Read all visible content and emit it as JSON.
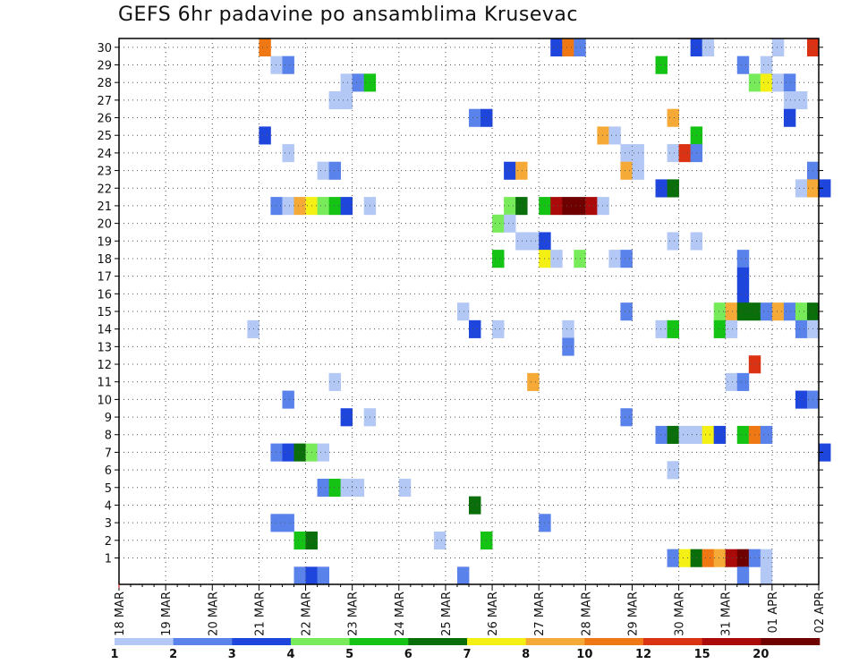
{
  "chart_data": {
    "type": "heatmap",
    "title": "GEFS 6hr padavine po ansamblima Krusevac",
    "xlabel": "",
    "ylabel": "",
    "x_tick_labels": [
      "18 MAR",
      "19 MAR",
      "20 MAR",
      "21 MAR",
      "22 MAR",
      "23 MAR",
      "24 MAR",
      "25 MAR",
      "26 MAR",
      "27 MAR",
      "28 MAR",
      "29 MAR",
      "30 MAR",
      "31 MAR",
      "01 APR",
      "02 APR"
    ],
    "y_range": [
      1,
      30
    ],
    "time_step_hours": 6,
    "grid": true,
    "legend_position": "bottom",
    "legend": {
      "levels": [
        "1",
        "2",
        "3",
        "4",
        "5",
        "6",
        "7",
        "8",
        "10",
        "12",
        "15",
        "20"
      ],
      "colors": [
        "#b4c8f5",
        "#5a82eb",
        "#1e46dc",
        "#78eb5a",
        "#14c314",
        "#0a6e0a",
        "#f5f014",
        "#f5aa37",
        "#f07814",
        "#dc3214",
        "#aa0a0a",
        "#6e0000"
      ]
    },
    "ensemble_cells": [
      {
        "m": 30,
        "s": [
          [
            12,
            8
          ],
          [
            37,
            2
          ],
          [
            38,
            8
          ],
          [
            39,
            1
          ],
          [
            49,
            2
          ],
          [
            50,
            0
          ],
          [
            56,
            0
          ],
          [
            59,
            9
          ]
        ]
      },
      {
        "m": 29,
        "s": [
          [
            13,
            0
          ],
          [
            14,
            1
          ],
          [
            46,
            4
          ],
          [
            53,
            1
          ],
          [
            55,
            0
          ]
        ]
      },
      {
        "m": 28,
        "s": [
          [
            19,
            0
          ],
          [
            20,
            1
          ],
          [
            21,
            4
          ],
          [
            54,
            3
          ],
          [
            55,
            6
          ],
          [
            56,
            0
          ],
          [
            57,
            1
          ]
        ]
      },
      {
        "m": 27,
        "s": [
          [
            18,
            0
          ],
          [
            19,
            0
          ],
          [
            57,
            0
          ],
          [
            58,
            0
          ]
        ]
      },
      {
        "m": 26,
        "s": [
          [
            30,
            1
          ],
          [
            31,
            2
          ],
          [
            47,
            7
          ],
          [
            57,
            2
          ]
        ]
      },
      {
        "m": 25,
        "s": [
          [
            12,
            2
          ],
          [
            41,
            7
          ],
          [
            42,
            0
          ],
          [
            49,
            4
          ]
        ]
      },
      {
        "m": 24,
        "s": [
          [
            14,
            0
          ],
          [
            43,
            0
          ],
          [
            44,
            0
          ],
          [
            47,
            0
          ],
          [
            48,
            9
          ],
          [
            49,
            1
          ]
        ]
      },
      {
        "m": 23,
        "s": [
          [
            17,
            0
          ],
          [
            18,
            1
          ],
          [
            33,
            2
          ],
          [
            34,
            7
          ],
          [
            43,
            7
          ],
          [
            44,
            0
          ],
          [
            59,
            1
          ]
        ]
      },
      {
        "m": 22,
        "s": [
          [
            46,
            2
          ],
          [
            47,
            5
          ],
          [
            58,
            0
          ],
          [
            59,
            7
          ],
          [
            60,
            2
          ]
        ]
      },
      {
        "m": 21,
        "s": [
          [
            13,
            1
          ],
          [
            14,
            0
          ],
          [
            15,
            7
          ],
          [
            16,
            6
          ],
          [
            17,
            3
          ],
          [
            18,
            4
          ],
          [
            19,
            2
          ],
          [
            21,
            0
          ],
          [
            33,
            3
          ],
          [
            34,
            5
          ],
          [
            36,
            4
          ],
          [
            37,
            10
          ],
          [
            38,
            11
          ],
          [
            39,
            11
          ],
          [
            40,
            10
          ],
          [
            41,
            0
          ]
        ]
      },
      {
        "m": 20,
        "s": [
          [
            32,
            3
          ],
          [
            33,
            0
          ]
        ]
      },
      {
        "m": 19,
        "s": [
          [
            34,
            0
          ],
          [
            35,
            0
          ],
          [
            36,
            2
          ],
          [
            47,
            0
          ],
          [
            49,
            0
          ]
        ]
      },
      {
        "m": 18,
        "s": [
          [
            32,
            4
          ],
          [
            36,
            6
          ],
          [
            37,
            0
          ],
          [
            39,
            3
          ],
          [
            42,
            0
          ],
          [
            43,
            1
          ],
          [
            53,
            1
          ]
        ]
      },
      {
        "m": 17,
        "s": [
          [
            53,
            2
          ]
        ]
      },
      {
        "m": 16,
        "s": [
          [
            53,
            2
          ]
        ]
      },
      {
        "m": 15,
        "s": [
          [
            29,
            0
          ],
          [
            43,
            1
          ],
          [
            51,
            3
          ],
          [
            52,
            7
          ],
          [
            53,
            5
          ],
          [
            54,
            5
          ],
          [
            55,
            1
          ],
          [
            56,
            7
          ],
          [
            57,
            1
          ],
          [
            58,
            3
          ],
          [
            59,
            5
          ]
        ]
      },
      {
        "m": 14,
        "s": [
          [
            11,
            0
          ],
          [
            30,
            2
          ],
          [
            32,
            0
          ],
          [
            38,
            0
          ],
          [
            46,
            0
          ],
          [
            47,
            4
          ],
          [
            51,
            4
          ],
          [
            52,
            0
          ],
          [
            58,
            1
          ],
          [
            59,
            0
          ]
        ]
      },
      {
        "m": 13,
        "s": [
          [
            38,
            1
          ]
        ]
      },
      {
        "m": 12,
        "s": [
          [
            54,
            9
          ]
        ]
      },
      {
        "m": 11,
        "s": [
          [
            18,
            0
          ],
          [
            35,
            7
          ],
          [
            52,
            0
          ],
          [
            53,
            1
          ]
        ]
      },
      {
        "m": 10,
        "s": [
          [
            14,
            1
          ],
          [
            58,
            2
          ],
          [
            59,
            1
          ]
        ]
      },
      {
        "m": 9,
        "s": [
          [
            19,
            2
          ],
          [
            21,
            0
          ],
          [
            43,
            1
          ]
        ]
      },
      {
        "m": 8,
        "s": [
          [
            46,
            1
          ],
          [
            47,
            5
          ],
          [
            48,
            0
          ],
          [
            49,
            0
          ],
          [
            50,
            6
          ],
          [
            51,
            2
          ],
          [
            53,
            4
          ],
          [
            54,
            8
          ],
          [
            55,
            1
          ]
        ]
      },
      {
        "m": 7,
        "s": [
          [
            13,
            1
          ],
          [
            14,
            2
          ],
          [
            15,
            5
          ],
          [
            16,
            3
          ],
          [
            17,
            0
          ],
          [
            60,
            2
          ]
        ]
      },
      {
        "m": 6,
        "s": [
          [
            47,
            0
          ]
        ]
      },
      {
        "m": 5,
        "s": [
          [
            17,
            1
          ],
          [
            18,
            4
          ],
          [
            19,
            0
          ],
          [
            20,
            0
          ],
          [
            24,
            0
          ]
        ]
      },
      {
        "m": 4,
        "s": [
          [
            30,
            5
          ]
        ]
      },
      {
        "m": 3,
        "s": [
          [
            13,
            1
          ],
          [
            14,
            1
          ],
          [
            36,
            1
          ]
        ]
      },
      {
        "m": 2,
        "s": [
          [
            15,
            4
          ],
          [
            16,
            5
          ],
          [
            27,
            0
          ],
          [
            31,
            4
          ]
        ]
      },
      {
        "m": 1,
        "s": [
          [
            47,
            1
          ],
          [
            48,
            6
          ],
          [
            49,
            5
          ],
          [
            50,
            8
          ],
          [
            51,
            7
          ],
          [
            52,
            10
          ],
          [
            53,
            11
          ],
          [
            54,
            1
          ],
          [
            55,
            0
          ]
        ]
      },
      {
        "m": 0,
        "s": [
          [
            15,
            1
          ],
          [
            16,
            2
          ],
          [
            17,
            1
          ],
          [
            29,
            1
          ],
          [
            53,
            1
          ],
          [
            55,
            0
          ]
        ]
      }
    ]
  }
}
